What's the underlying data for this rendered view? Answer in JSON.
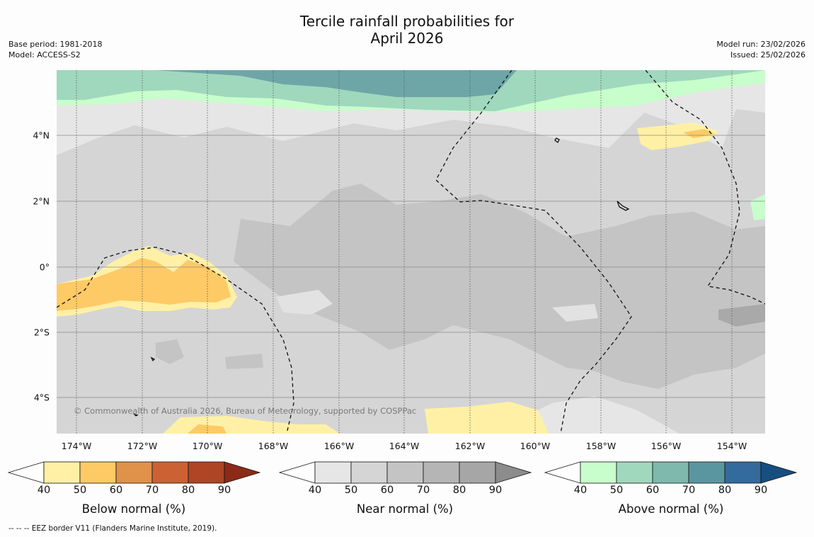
{
  "header": {
    "title_line1": "Tercile rainfall probabilities for",
    "title_line2": "April 2026",
    "base_period": "Base period: 1981-2018",
    "model": "Model: ACCESS-S2",
    "model_run": "Model run: 23/02/2026",
    "issued": "Issued: 25/02/2026"
  },
  "map": {
    "lon_labels": [
      "174°W",
      "172°W",
      "170°W",
      "168°W",
      "166°W",
      "164°W",
      "162°W",
      "160°W",
      "158°W",
      "156°W",
      "154°W"
    ],
    "lat_labels": [
      "4°N",
      "2°N",
      "0°",
      "2°S",
      "4°S"
    ],
    "copyright": "© Commonwealth of Australia 2026, Bureau of Meteorology, supported by COSPPac"
  },
  "colorbars": [
    {
      "title": "Below normal (%)",
      "ticks": [
        "40",
        "50",
        "60",
        "70",
        "80",
        "90"
      ],
      "colors": [
        "#fff0a6",
        "#fdca66",
        "#e0914a",
        "#cc6233",
        "#ae4524",
        "#8c2a18"
      ]
    },
    {
      "title": "Near normal (%)",
      "ticks": [
        "40",
        "50",
        "60",
        "70",
        "80",
        "90"
      ],
      "colors": [
        "#e6e6e6",
        "#d5d5d5",
        "#c4c4c4",
        "#b5b5b5",
        "#a6a6a6",
        "#8c8c8c"
      ]
    },
    {
      "title": "Above normal (%)",
      "ticks": [
        "40",
        "50",
        "60",
        "70",
        "80",
        "90"
      ],
      "colors": [
        "#c8fdcc",
        "#a0d8bd",
        "#7fb8ad",
        "#5a96a0",
        "#336b9c",
        "#174e80"
      ]
    }
  ],
  "footer": {
    "legend": "--  --  -- EEZ border V11 (Flanders Marine Institute, 2019)."
  }
}
